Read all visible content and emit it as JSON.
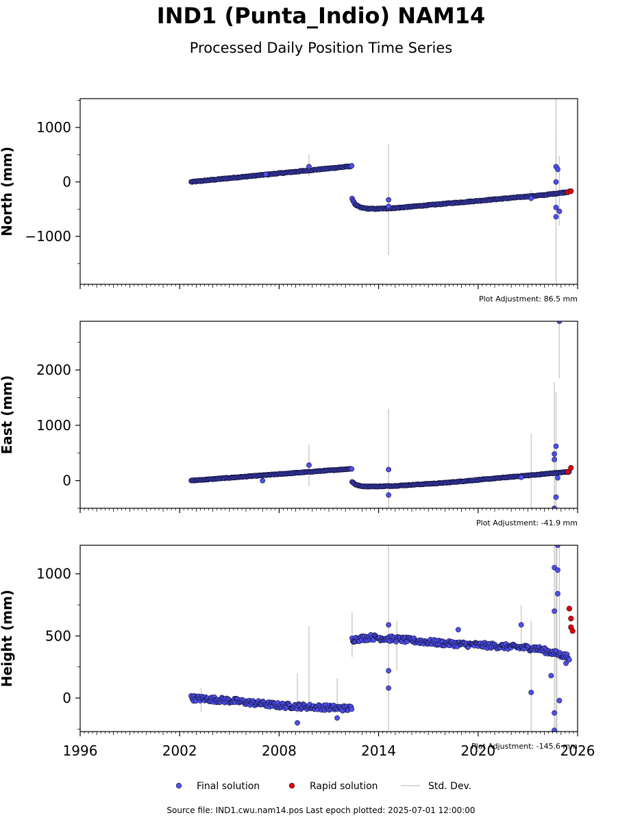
{
  "title": "IND1 (Punta_Indio) NAM14",
  "subtitle": "Processed Daily Position Time Series",
  "source_file": "Source file: IND1.cwu.nam14.pos  Last epoch plotted: 2025-07-01 12:00:00",
  "legend": {
    "final": "Final solution",
    "rapid": "Rapid solution",
    "std": "Std. Dev."
  },
  "colors": {
    "final": "#4f4fef",
    "rapid": "#e60000",
    "edge": "#111133",
    "std": "#cccccc"
  },
  "chart_data": [
    {
      "type": "scatter",
      "ylabel": "North (mm)",
      "adjustment": "Plot Adjustment: 86.5 mm",
      "xlim": [
        1996,
        2026
      ],
      "ylim": [
        -1880,
        1530
      ],
      "yticks": [
        1000,
        0,
        -1000
      ],
      "ytick_labels": [
        "1000",
        "0",
        "−1000"
      ],
      "segments": [
        {
          "x": [
            2002.7,
            2012.4
          ],
          "y": [
            0,
            290
          ]
        },
        {
          "x": [
            2012.4,
            2012.6,
            2012.9,
            2013.3,
            2013.8,
            2015.0,
            2018.0,
            2021.0,
            2024.0,
            2025.5
          ],
          "y": [
            -310,
            -420,
            -470,
            -490,
            -495,
            -480,
            -400,
            -320,
            -240,
            -180
          ]
        }
      ],
      "noise": 8,
      "outliers": [
        [
          2009.8,
          280
        ],
        [
          2007.2,
          140
        ],
        [
          2014.6,
          -330
        ],
        [
          2014.6,
          -450
        ],
        [
          2023.2,
          -300
        ],
        [
          2024.7,
          280
        ],
        [
          2024.7,
          -470
        ],
        [
          2024.7,
          -640
        ],
        [
          2024.8,
          230
        ],
        [
          2024.9,
          -540
        ],
        [
          2024.7,
          0
        ]
      ],
      "std_bars": [
        [
          2009.8,
          100,
          500
        ],
        [
          2014.6,
          -1340,
          690
        ],
        [
          2024.7,
          -1880,
          1530
        ],
        [
          2024.7,
          -760,
          920
        ],
        [
          2024.9,
          -800,
          480
        ],
        [
          2023.2,
          -380,
          -150
        ]
      ],
      "rapid": {
        "x": [
          2025.4,
          2025.6
        ],
        "y": [
          -190,
          -170
        ]
      }
    },
    {
      "type": "scatter",
      "ylabel": "East (mm)",
      "adjustment": "Plot Adjustment: -41.9 mm",
      "xlim": [
        1996,
        2026
      ],
      "ylim": [
        -500,
        2880
      ],
      "yticks": [
        2000,
        1000,
        0
      ],
      "ytick_labels": [
        "2000",
        "1000",
        "0"
      ],
      "segments": [
        {
          "x": [
            2002.7,
            2012.4
          ],
          "y": [
            0,
            215
          ]
        },
        {
          "x": [
            2012.4,
            2012.6,
            2012.9,
            2013.3,
            2014.0,
            2015.0,
            2018.0,
            2021.0,
            2024.0,
            2025.5
          ],
          "y": [
            -20,
            -70,
            -100,
            -105,
            -105,
            -95,
            -40,
            40,
            120,
            160
          ]
        }
      ],
      "noise": 6,
      "outliers": [
        [
          2009.8,
          280
        ],
        [
          2007.0,
          0
        ],
        [
          2014.6,
          200
        ],
        [
          2014.6,
          -260
        ],
        [
          2022.6,
          60
        ],
        [
          2024.6,
          480
        ],
        [
          2024.7,
          620
        ],
        [
          2024.7,
          -300
        ],
        [
          2024.6,
          -500
        ],
        [
          2024.9,
          2880
        ],
        [
          2024.6,
          380
        ],
        [
          2024.8,
          50
        ]
      ],
      "std_bars": [
        [
          2009.8,
          -100,
          650
        ],
        [
          2014.6,
          -800,
          1300
        ],
        [
          2023.2,
          -500,
          850
        ],
        [
          2024.6,
          -500,
          1780
        ],
        [
          2024.7,
          -500,
          1600
        ],
        [
          2024.9,
          1850,
          2880
        ]
      ],
      "rapid": {
        "x": [
          2025.4,
          2025.6
        ],
        "y": [
          160,
          230
        ]
      }
    },
    {
      "type": "scatter",
      "ylabel": "Height (mm)",
      "adjustment": "Plot Adjustment: -145.6 mm",
      "xlim": [
        1996,
        2026
      ],
      "ylim": [
        -270,
        1230
      ],
      "yticks": [
        1000,
        500,
        0
      ],
      "ytick_labels": [
        "1000",
        "500",
        "0"
      ],
      "xticks": [
        1996,
        2002,
        2008,
        2014,
        2020,
        2026
      ],
      "xtick_labels": [
        "1996",
        "2002",
        "2008",
        "2014",
        "2020",
        "2026"
      ],
      "segments": [
        {
          "x": [
            2002.7,
            2005.0,
            2008.0,
            2012.4
          ],
          "y": [
            0,
            -20,
            -60,
            -85
          ]
        },
        {
          "x": [
            2012.4,
            2013.5,
            2015.0,
            2018.0,
            2021.0,
            2023.5,
            2025.5
          ],
          "y": [
            470,
            490,
            475,
            440,
            420,
            400,
            330
          ]
        }
      ],
      "noise": 22,
      "outliers": [
        [
          2009.1,
          -200
        ],
        [
          2011.5,
          -160
        ],
        [
          2014.6,
          590
        ],
        [
          2014.6,
          220
        ],
        [
          2014.6,
          80
        ],
        [
          2022.6,
          590
        ],
        [
          2023.2,
          45
        ],
        [
          2024.4,
          180
        ],
        [
          2024.6,
          1050
        ],
        [
          2024.6,
          700
        ],
        [
          2024.6,
          -120
        ],
        [
          2024.6,
          -260
        ],
        [
          2024.8,
          1230
        ],
        [
          2024.8,
          1030
        ],
        [
          2024.8,
          840
        ],
        [
          2024.9,
          -20
        ],
        [
          2018.8,
          550
        ],
        [
          2025.3,
          280
        ]
      ],
      "std_bars": [
        [
          2003.3,
          -110,
          80
        ],
        [
          2009.1,
          -120,
          200
        ],
        [
          2009.8,
          -100,
          580
        ],
        [
          2011.5,
          -120,
          160
        ],
        [
          2012.4,
          330,
          690
        ],
        [
          2014.6,
          -260,
          1230
        ],
        [
          2015.1,
          220,
          620
        ],
        [
          2022.6,
          400,
          750
        ],
        [
          2023.2,
          -260,
          620
        ],
        [
          2024.6,
          -270,
          1230
        ],
        [
          2024.7,
          -270,
          1230
        ],
        [
          2024.75,
          -270,
          1230
        ],
        [
          2024.9,
          300,
          1230
        ]
      ],
      "rapid": {
        "x": [
          2025.5,
          2025.6,
          2025.6,
          2025.7
        ],
        "y": [
          720,
          640,
          570,
          540
        ]
      }
    }
  ]
}
